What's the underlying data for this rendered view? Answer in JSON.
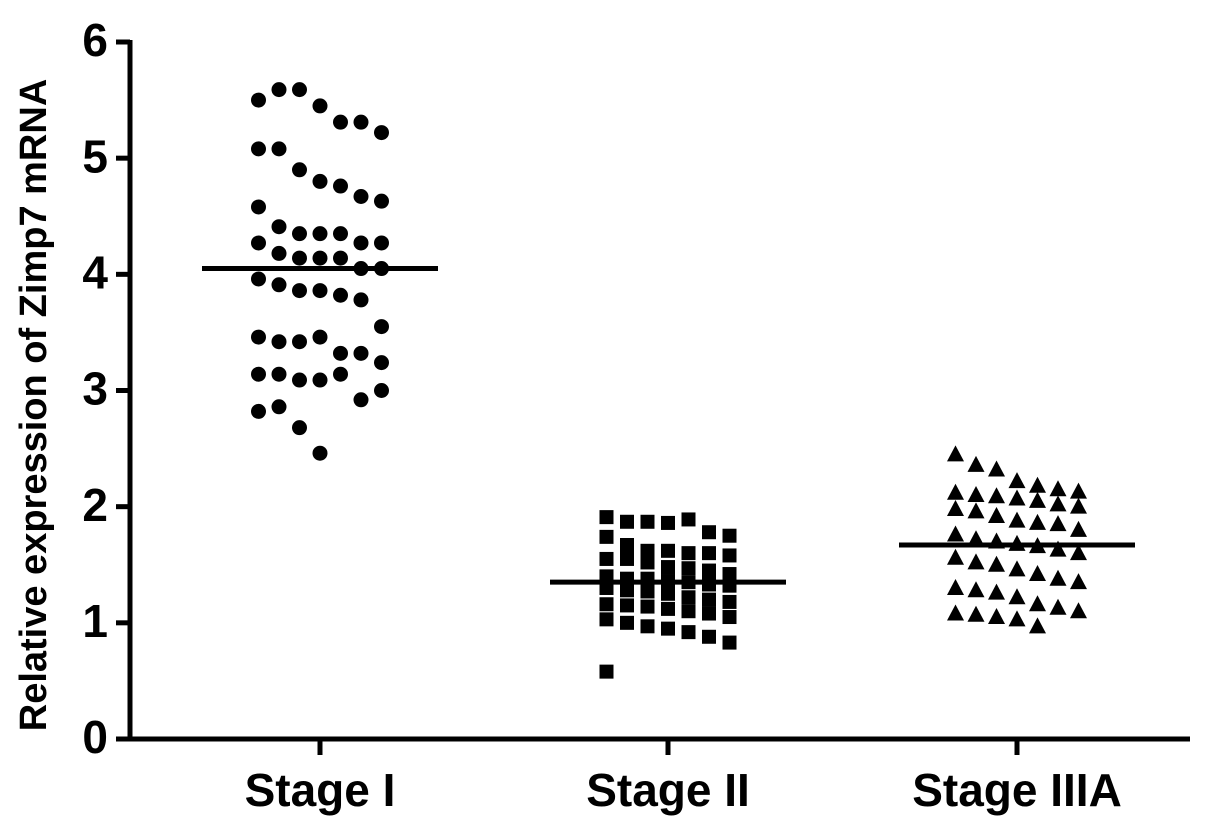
{
  "chart_data": {
    "type": "dot",
    "y_label": "Relative expression of Zimp7 mRNA",
    "categories": [
      "Stage I",
      "Stage II",
      "Stage IIIA"
    ],
    "ylim": [
      0,
      6
    ],
    "yticks": [
      0,
      1,
      2,
      3,
      4,
      5,
      6
    ],
    "color": "#000000",
    "groups": [
      {
        "marker": "circle",
        "mean": 4.05,
        "values": [
          5.5,
          5.59,
          5.59,
          5.45,
          5.31,
          5.31,
          5.22,
          5.08,
          5.08,
          4.9,
          4.8,
          4.76,
          4.67,
          4.63,
          4.58,
          4.41,
          4.35,
          4.35,
          4.35,
          4.27,
          4.27,
          4.27,
          4.18,
          4.14,
          4.14,
          4.14,
          4.05,
          4.05,
          3.96,
          3.91,
          3.86,
          3.86,
          3.82,
          3.78,
          3.55,
          3.46,
          3.42,
          3.42,
          3.46,
          3.32,
          3.32,
          3.24,
          3.14,
          3.14,
          3.09,
          3.09,
          3.14,
          2.92,
          3.0,
          2.82,
          2.86,
          2.68,
          2.46
        ]
      },
      {
        "marker": "square",
        "mean": 1.35,
        "values": [
          1.91,
          1.87,
          1.87,
          1.86,
          1.89,
          1.78,
          1.75,
          1.74,
          1.67,
          1.62,
          1.62,
          1.6,
          1.6,
          1.58,
          1.55,
          1.55,
          1.52,
          1.48,
          1.47,
          1.45,
          1.42,
          1.4,
          1.38,
          1.38,
          1.36,
          1.35,
          1.33,
          1.32,
          1.3,
          1.28,
          1.27,
          1.25,
          1.22,
          1.2,
          1.18,
          1.16,
          1.15,
          1.14,
          1.12,
          1.1,
          1.08,
          1.05,
          1.03,
          1.0,
          0.97,
          0.95,
          0.92,
          0.88,
          0.83,
          0.58
        ]
      },
      {
        "marker": "triangle",
        "mean": 1.67,
        "values": [
          2.45,
          2.36,
          2.32,
          2.22,
          2.18,
          2.15,
          2.13,
          2.12,
          2.1,
          2.09,
          2.07,
          2.05,
          2.02,
          2.0,
          1.98,
          1.96,
          1.92,
          1.88,
          1.86,
          1.85,
          1.8,
          1.76,
          1.72,
          1.7,
          1.68,
          1.66,
          1.63,
          1.6,
          1.56,
          1.52,
          1.5,
          1.46,
          1.42,
          1.38,
          1.35,
          1.3,
          1.28,
          1.26,
          1.22,
          1.16,
          1.13,
          1.1,
          1.08,
          1.07,
          1.05,
          1.03,
          0.97
        ]
      }
    ]
  }
}
